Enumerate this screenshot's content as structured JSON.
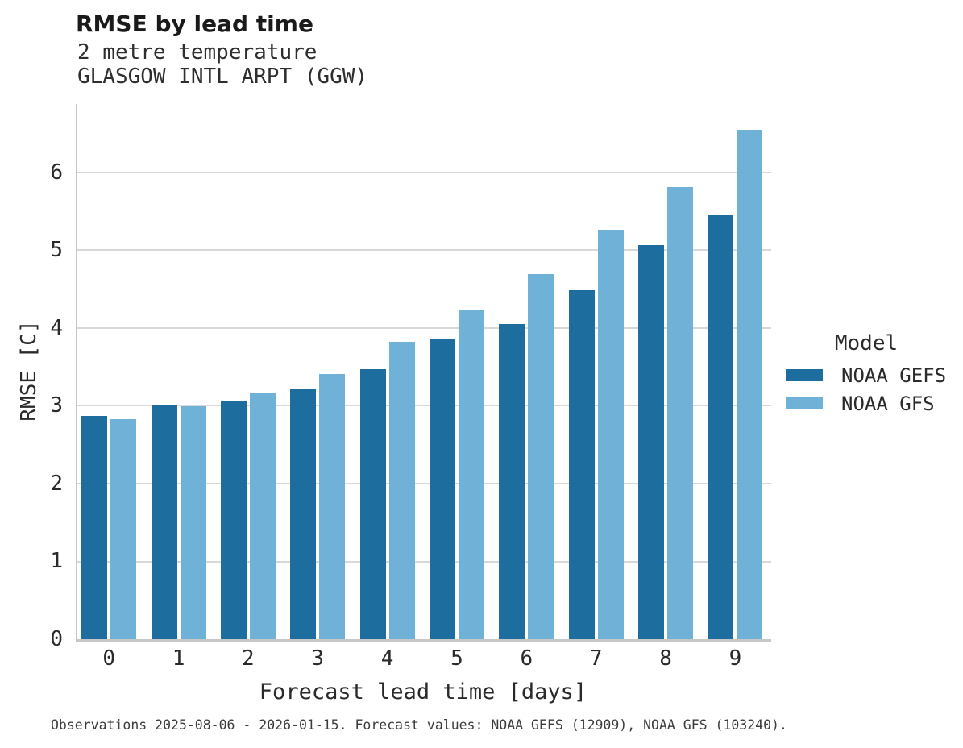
{
  "chart_data": {
    "type": "bar",
    "title": "RMSE by lead time",
    "subtitle": [
      "2 metre temperature",
      "GLASGOW INTL ARPT (GGW)"
    ],
    "categories": [
      "0",
      "1",
      "2",
      "3",
      "4",
      "5",
      "6",
      "7",
      "8",
      "9"
    ],
    "series": [
      {
        "name": "NOAA GEFS",
        "color": "#1d6d9f",
        "values": [
          2.87,
          3.01,
          3.06,
          3.22,
          3.47,
          3.85,
          4.05,
          4.49,
          5.07,
          5.45
        ]
      },
      {
        "name": "NOAA GFS",
        "color": "#70b1d8",
        "values": [
          2.83,
          2.99,
          3.16,
          3.41,
          3.82,
          4.24,
          4.69,
          5.26,
          5.81,
          6.55
        ]
      }
    ],
    "xlabel": "Forecast lead time [days]",
    "ylabel": "RMSE [C]",
    "ylim": [
      0,
      6.88
    ],
    "yticks": [
      0,
      1,
      2,
      3,
      4,
      5,
      6
    ],
    "grid": true,
    "legend_title": "Model",
    "legend_position": "right-center",
    "caption": "Observations 2025-08-06 - 2026-01-15. Forecast values: NOAA GEFS (12909), NOAA GFS (103240)."
  },
  "colors": {
    "bar_dark": "#1d6d9f",
    "bar_light": "#70b1d8",
    "gridline": "#d8d8d8",
    "axis": "#c7c7c7",
    "text": "#262626",
    "background": "#ffffff"
  }
}
